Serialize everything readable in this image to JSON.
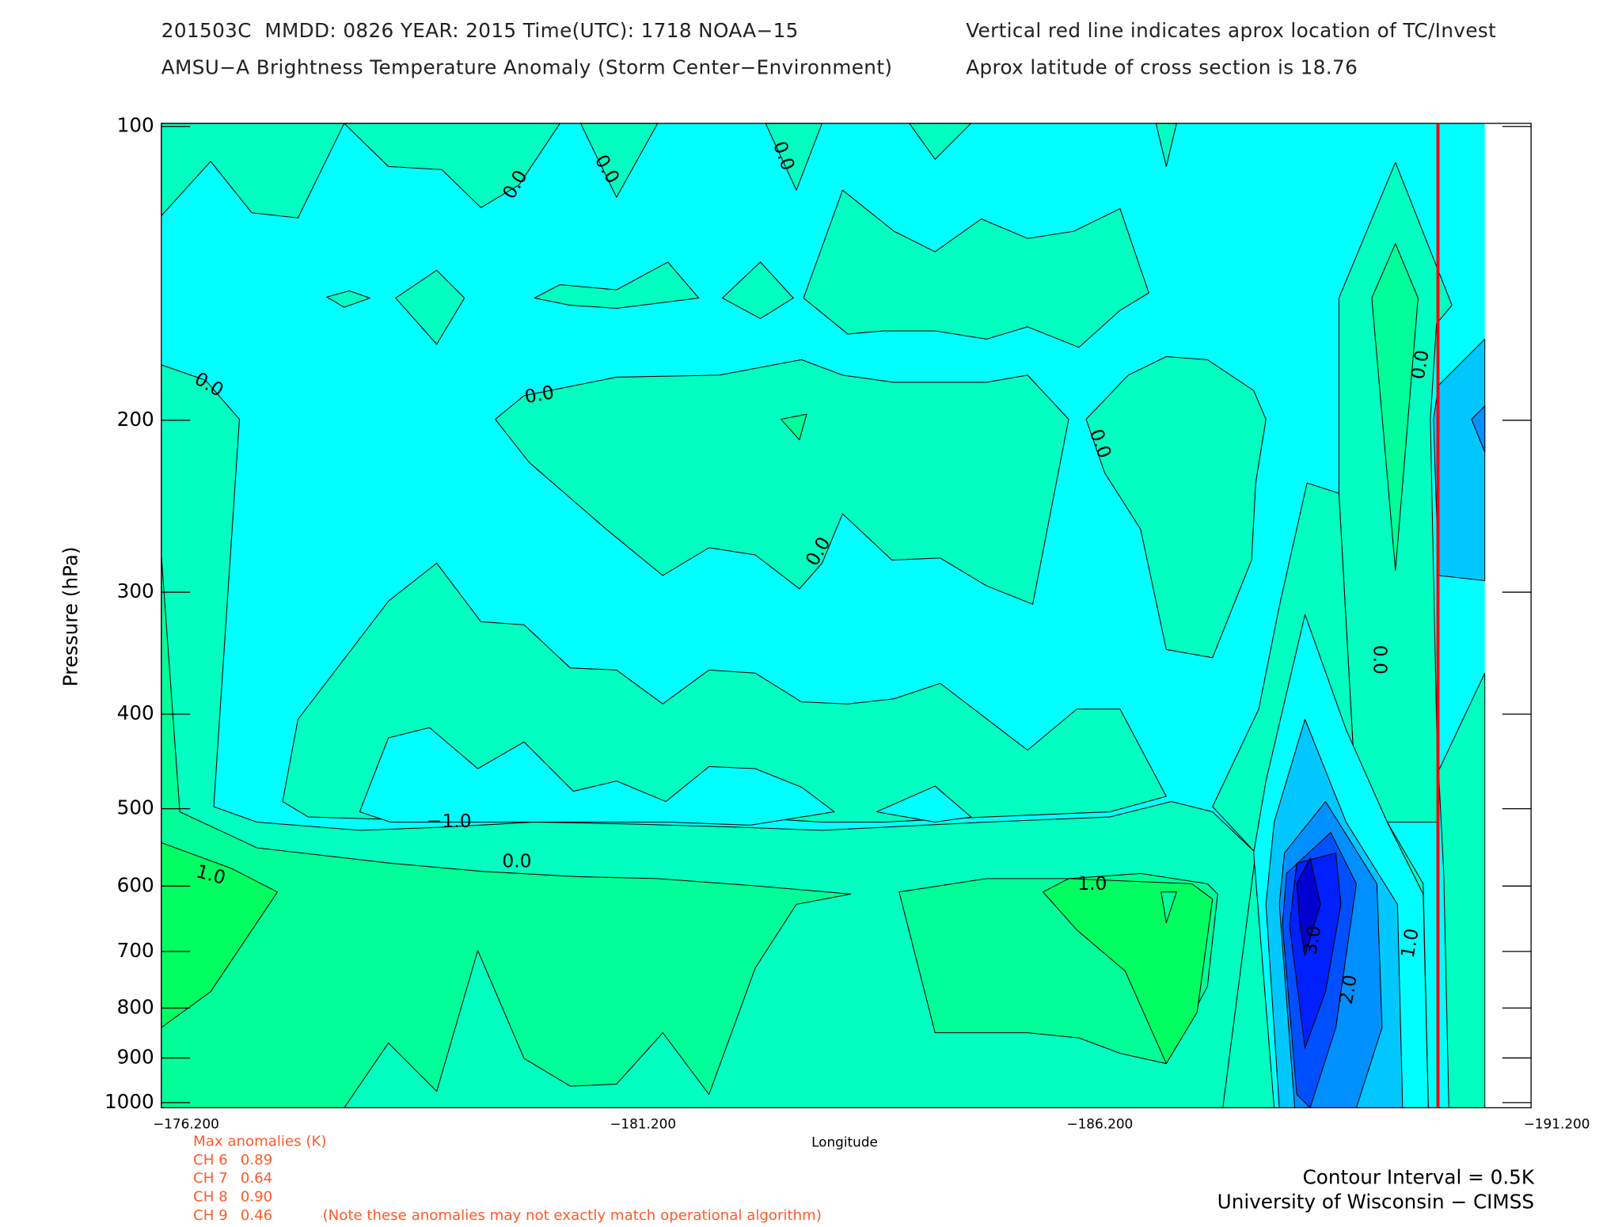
{
  "chart_data": {
    "type": "contour",
    "title_lines": [
      "201503C  MMDD: 0826 YEAR: 2015 Time(UTC): 1718 NOAA−15",
      "AMSU−A Brightness Temperature Anomaly (Storm Center−Environment)"
    ],
    "header_right": [
      "Vertical red line indicates aprox location of TC/Invest",
      "Aprox latitude of cross section is 18.76"
    ],
    "x_label": "Longitude",
    "y_label": "Pressure (hPa)",
    "xlim": [
      -176.2,
      -191.2
    ],
    "xticks": [
      {
        "value": -176.2,
        "label": "−176.200"
      },
      {
        "value": -181.2,
        "label": "−181.200"
      },
      {
        "value": -186.2,
        "label": "−186.200"
      },
      {
        "value": -191.2,
        "label": "−191.200"
      }
    ],
    "ylim": [
      100,
      1000
    ],
    "y_scale": "log",
    "yticks": [
      100,
      200,
      300,
      400,
      500,
      600,
      700,
      800,
      900,
      1000
    ],
    "storm_longitude": -189.9,
    "storm_line_color": "#ff0000",
    "contour_labels": [
      "0.0",
      "0.0",
      "0.0",
      "0.0",
      "0.0",
      "0.0",
      "0.0",
      "0.0",
      "0.0",
      "−1.0",
      "0.0",
      "1.0",
      "1.0",
      "3.0",
      "2.0",
      "1.0"
    ],
    "max_anomalies": {
      "title": "Max anomalies (K)",
      "rows": [
        [
          "CH 6",
          "0.89"
        ],
        [
          "CH 7",
          "0.64"
        ],
        [
          "CH 8",
          "0.90"
        ],
        [
          "CH 9",
          "0.46"
        ]
      ]
    },
    "note": "(Note these anomalies may not exactly match operational algorithm)",
    "contour_interval": "Contour Interval = 0.5K",
    "credit": "University of Wisconsin − CIMSS"
  }
}
